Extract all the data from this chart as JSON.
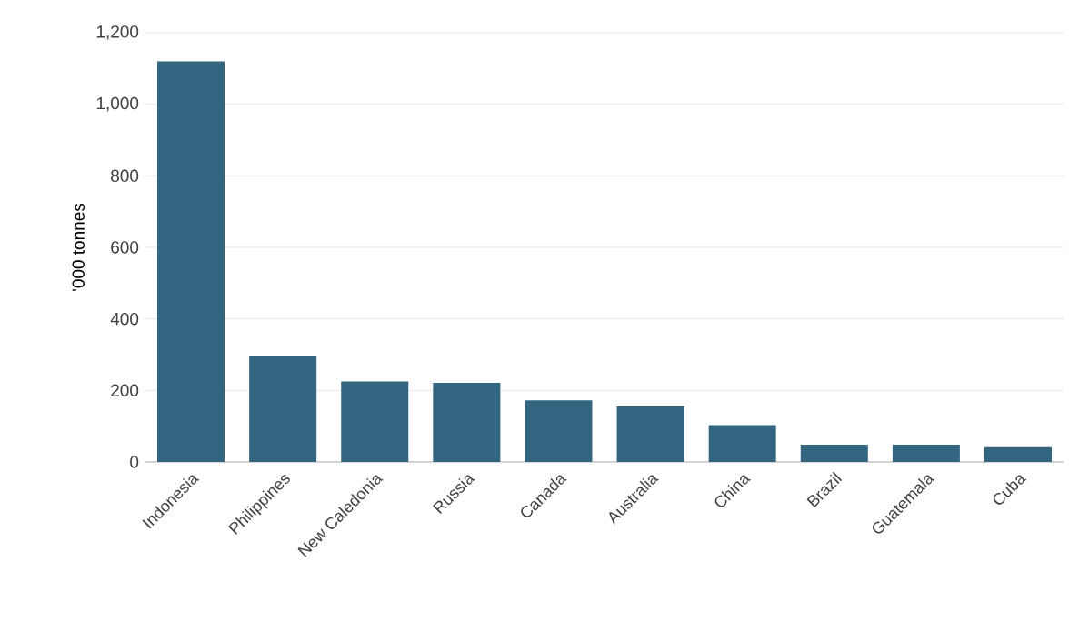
{
  "chart_data": {
    "type": "bar",
    "ylabel": "'000 tonnes",
    "categories": [
      "Indonesia",
      "Philippines",
      "New Caledonia",
      "Russia",
      "Canada",
      "Australia",
      "China",
      "Brazil",
      "Guatemala",
      "Cuba"
    ],
    "values": [
      1120,
      295,
      225,
      221,
      172,
      155,
      103,
      48,
      48,
      41
    ],
    "color": "#336580",
    "ylim": [
      0,
      1200
    ],
    "yticks": [
      {
        "value": 0,
        "label": "0"
      },
      {
        "value": 200,
        "label": "200"
      },
      {
        "value": 400,
        "label": "400"
      },
      {
        "value": 600,
        "label": "600"
      },
      {
        "value": 800,
        "label": "800"
      },
      {
        "value": 1000,
        "label": "1,000"
      },
      {
        "value": 1200,
        "label": "1,200"
      }
    ],
    "grid": "y"
  }
}
